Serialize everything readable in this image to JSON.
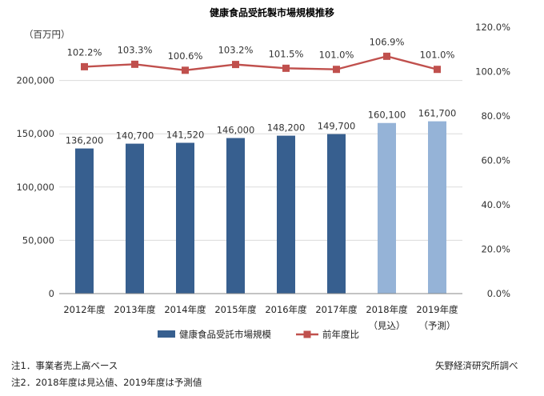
{
  "chart_data": {
    "type": "bar+line",
    "title": "健康食品受託製市場規模推移",
    "ylabel_left": "（百万円）",
    "categories": [
      {
        "year": "2012年度",
        "sub": ""
      },
      {
        "year": "2013年度",
        "sub": ""
      },
      {
        "year": "2014年度",
        "sub": ""
      },
      {
        "year": "2015年度",
        "sub": ""
      },
      {
        "year": "2016年度",
        "sub": ""
      },
      {
        "year": "2017年度",
        "sub": ""
      },
      {
        "year": "2018年度",
        "sub": "（見込）"
      },
      {
        "year": "2019年度",
        "sub": "（予測）"
      }
    ],
    "series": [
      {
        "name": "健康食品受託市場規模",
        "kind": "bar",
        "axis": "left",
        "values": [
          136200,
          140700,
          141520,
          146000,
          148200,
          149700,
          160100,
          161700
        ],
        "labels": [
          "136,200",
          "140,700",
          "141,520",
          "146,000",
          "148,200",
          "149,700",
          "160,100",
          "161,700"
        ],
        "colors": [
          "#375f8f",
          "#375f8f",
          "#375f8f",
          "#375f8f",
          "#375f8f",
          "#375f8f",
          "#95b3d7",
          "#95b3d7"
        ]
      },
      {
        "name": "前年度比",
        "kind": "line",
        "axis": "right",
        "values": [
          102.2,
          103.3,
          100.6,
          103.2,
          101.5,
          101.0,
          106.9,
          101.0
        ],
        "labels": [
          "102.2%",
          "103.3%",
          "100.6%",
          "103.2%",
          "101.5%",
          "101.0%",
          "106.9%",
          "101.0%"
        ],
        "color": "#c0504d"
      }
    ],
    "left_axis": {
      "ylim": [
        0,
        250000
      ],
      "ticks": [
        0,
        50000,
        100000,
        150000,
        200000
      ],
      "tick_labels": [
        "0",
        "50,000",
        "100,000",
        "150,000",
        "200,000"
      ]
    },
    "right_axis": {
      "ylim": [
        0,
        120
      ],
      "ticks": [
        0,
        20,
        40,
        60,
        80,
        100,
        120
      ],
      "tick_labels": [
        "0.0%",
        "20.0%",
        "40.0%",
        "60.0%",
        "80.0%",
        "100.0%",
        "120.0%"
      ]
    },
    "legend": {
      "placement": "bottom-center"
    }
  },
  "notes": {
    "note1": "注1．事業者売上高ベース",
    "note2": "注2．2018年度は見込値、2019年度は予測値",
    "source": "矢野経済研究所調べ"
  }
}
